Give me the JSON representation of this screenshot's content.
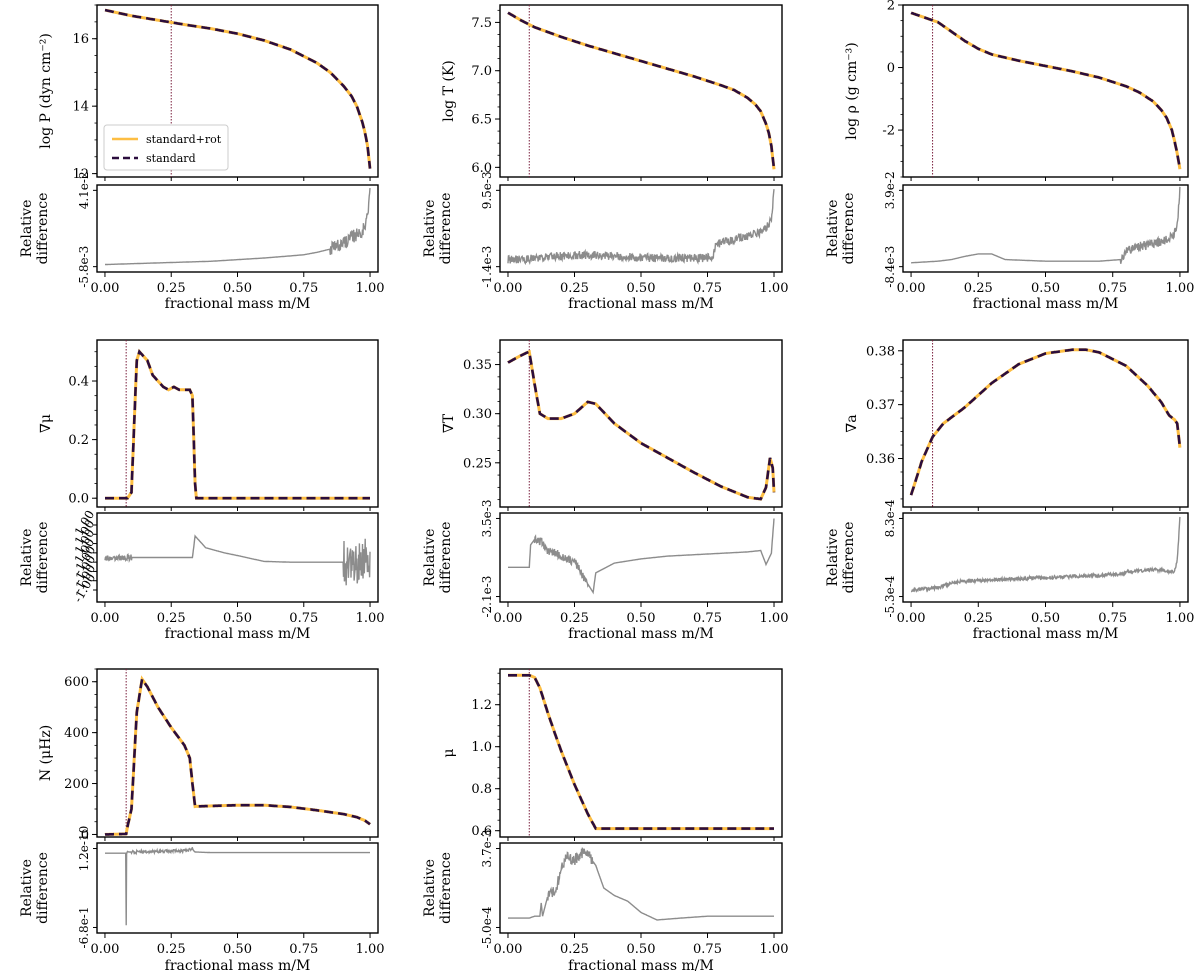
{
  "figure": {
    "xlabel": "fractional mass m/M",
    "diff_ylabel": [
      "Relative",
      "difference"
    ],
    "legend": [
      {
        "label": "standard+rot",
        "color": "#FDBE43",
        "style": "solid"
      },
      {
        "label": "standard",
        "color": "#2B0D3D",
        "style": "dashed"
      }
    ],
    "colors": {
      "rot": "#FDBE43",
      "standard": "#2B0D3D",
      "difference": "#8C8C8C",
      "vline": "#7A1F3D"
    }
  },
  "chart_data": [
    {
      "id": "logP",
      "type": "line",
      "ylabel": "log P (dyn cm⁻²)",
      "ylim": [
        11.9,
        17.0
      ],
      "yticks": [
        12,
        14,
        16
      ],
      "xlim": [
        -0.03,
        1.03
      ],
      "vline_x": 0.25,
      "x": [
        0,
        0.1,
        0.2,
        0.3,
        0.4,
        0.5,
        0.6,
        0.7,
        0.8,
        0.85,
        0.9,
        0.93,
        0.95,
        0.97,
        0.98,
        0.99,
        1.0
      ],
      "series": [
        {
          "name": "standard+rot",
          "values": [
            16.85,
            16.68,
            16.55,
            16.42,
            16.3,
            16.15,
            15.95,
            15.68,
            15.28,
            15.0,
            14.6,
            14.3,
            14.0,
            13.55,
            13.25,
            12.85,
            12.15
          ]
        },
        {
          "name": "standard",
          "values": [
            16.85,
            16.68,
            16.55,
            16.42,
            16.3,
            16.15,
            15.95,
            15.68,
            15.28,
            15.0,
            14.6,
            14.3,
            14.0,
            13.55,
            13.25,
            12.85,
            12.15
          ]
        }
      ],
      "difference": {
        "ylim": [
          -0.0058,
          0.041
        ],
        "tick_labels": [
          "4.1e-2",
          "-5.8e-3"
        ],
        "x": [
          0,
          0.1,
          0.2,
          0.3,
          0.4,
          0.5,
          0.6,
          0.7,
          0.75,
          0.8,
          0.85,
          0.88,
          0.9,
          0.92,
          0.94,
          0.96,
          0.98,
          0.99,
          1.0
        ],
        "values": [
          -0.0045,
          -0.004,
          -0.0035,
          -0.003,
          -0.0025,
          -0.0015,
          -0.0005,
          0.0008,
          0.0015,
          0.003,
          0.005,
          0.007,
          0.009,
          0.011,
          0.013,
          0.015,
          0.018,
          0.025,
          0.041
        ],
        "noise_x": [
          0.85,
          1.0
        ],
        "noise_amp": 0.004
      }
    },
    {
      "id": "logT",
      "type": "line",
      "ylabel": "log T (K)",
      "ylim": [
        5.9,
        7.68
      ],
      "yticks": [
        6.0,
        6.5,
        7.0,
        7.5
      ],
      "xlim": [
        -0.03,
        1.03
      ],
      "vline_x": 0.08,
      "x": [
        0,
        0.05,
        0.1,
        0.2,
        0.3,
        0.4,
        0.5,
        0.6,
        0.7,
        0.8,
        0.85,
        0.9,
        0.93,
        0.95,
        0.97,
        0.98,
        0.99,
        1.0
      ],
      "series": [
        {
          "name": "standard+rot",
          "values": [
            7.6,
            7.52,
            7.45,
            7.35,
            7.26,
            7.18,
            7.1,
            7.02,
            6.94,
            6.85,
            6.8,
            6.72,
            6.65,
            6.58,
            6.45,
            6.36,
            6.22,
            5.98
          ]
        },
        {
          "name": "standard",
          "values": [
            7.6,
            7.52,
            7.45,
            7.35,
            7.26,
            7.18,
            7.1,
            7.02,
            6.94,
            6.85,
            6.8,
            6.72,
            6.65,
            6.58,
            6.45,
            6.36,
            6.22,
            5.98
          ]
        }
      ],
      "difference": {
        "ylim": [
          -0.0014,
          0.0095
        ],
        "tick_labels": [
          "9.5e-3",
          "-1.4e-3"
        ],
        "x": [
          0,
          0.05,
          0.1,
          0.15,
          0.2,
          0.3,
          0.4,
          0.5,
          0.6,
          0.7,
          0.77,
          0.78,
          0.8,
          0.85,
          0.9,
          0.95,
          0.98,
          0.99,
          1.0
        ],
        "values": [
          -0.0004,
          -0.0004,
          -0.0002,
          0.0,
          0.0001,
          0.0003,
          0.0001,
          -0.0001,
          -0.0002,
          -0.0002,
          -0.0001,
          0.0015,
          0.002,
          0.0025,
          0.003,
          0.0035,
          0.0045,
          0.0055,
          0.0095
        ],
        "noise_x": [
          0.0,
          1.0
        ],
        "noise_amp": 0.0006
      }
    },
    {
      "id": "logRho",
      "type": "line",
      "ylabel": "log ρ (g cm⁻³)",
      "ylim": [
        -3.5,
        2.0
      ],
      "yticks": [
        -2,
        0,
        2
      ],
      "xlim": [
        -0.03,
        1.03
      ],
      "vline_x": 0.08,
      "x": [
        0,
        0.05,
        0.1,
        0.15,
        0.2,
        0.25,
        0.3,
        0.4,
        0.5,
        0.6,
        0.7,
        0.8,
        0.85,
        0.9,
        0.93,
        0.95,
        0.97,
        0.98,
        0.99,
        1.0
      ],
      "series": [
        {
          "name": "standard+rot",
          "values": [
            1.75,
            1.6,
            1.45,
            1.15,
            0.85,
            0.6,
            0.42,
            0.22,
            0.05,
            -0.12,
            -0.32,
            -0.6,
            -0.8,
            -1.08,
            -1.35,
            -1.6,
            -2.0,
            -2.35,
            -2.75,
            -3.25
          ]
        },
        {
          "name": "standard",
          "values": [
            1.75,
            1.6,
            1.45,
            1.15,
            0.85,
            0.6,
            0.42,
            0.22,
            0.05,
            -0.12,
            -0.32,
            -0.6,
            -0.8,
            -1.08,
            -1.35,
            -1.6,
            -2.0,
            -2.35,
            -2.75,
            -3.25
          ]
        }
      ],
      "difference": {
        "ylim": [
          -0.0084,
          0.039
        ],
        "tick_labels": [
          "3.9e-2",
          "-8.4e-3"
        ],
        "x": [
          0,
          0.1,
          0.15,
          0.2,
          0.25,
          0.3,
          0.35,
          0.5,
          0.7,
          0.78,
          0.8,
          0.85,
          0.9,
          0.95,
          0.98,
          0.99,
          1.0
        ],
        "values": [
          -0.006,
          -0.005,
          -0.004,
          -0.002,
          -0.0005,
          -0.0005,
          -0.004,
          -0.005,
          -0.005,
          -0.004,
          0.002,
          0.004,
          0.006,
          0.008,
          0.012,
          0.018,
          0.039
        ],
        "noise_x": [
          0.78,
          1.0
        ],
        "noise_amp": 0.003
      }
    },
    {
      "id": "gradMu",
      "type": "line",
      "ylabel": "∇μ",
      "ylim": [
        -0.03,
        0.54
      ],
      "yticks": [
        0.0,
        0.2,
        0.4
      ],
      "xlim": [
        -0.03,
        1.03
      ],
      "vline_x": 0.08,
      "x": [
        0,
        0.085,
        0.1,
        0.11,
        0.12,
        0.13,
        0.14,
        0.16,
        0.18,
        0.2,
        0.22,
        0.24,
        0.26,
        0.28,
        0.3,
        0.32,
        0.33,
        0.34,
        0.345,
        0.5,
        0.7,
        1.0
      ],
      "series": [
        {
          "name": "standard+rot",
          "values": [
            0.0,
            0.0,
            0.02,
            0.25,
            0.47,
            0.5,
            0.49,
            0.47,
            0.42,
            0.4,
            0.38,
            0.37,
            0.38,
            0.37,
            0.37,
            0.37,
            0.35,
            0.05,
            0.0,
            0.0,
            0.0,
            0.0
          ]
        },
        {
          "name": "standard",
          "values": [
            0.0,
            0.0,
            0.02,
            0.25,
            0.47,
            0.5,
            0.49,
            0.47,
            0.42,
            0.4,
            0.38,
            0.37,
            0.38,
            0.37,
            0.37,
            0.37,
            0.35,
            0.05,
            0.0,
            0.0,
            0.0,
            0.0
          ]
        }
      ],
      "difference": {
        "ylim": [
          -1.0,
          1.0
        ],
        "tick_labels": [
          "1.00",
          "1.00",
          "1.00",
          "1.00",
          "-1.00",
          "-1.00",
          "-1.00",
          "-1.00"
        ],
        "x": [
          0,
          0.08,
          0.1,
          0.2,
          0.3,
          0.33,
          0.34,
          0.38,
          0.45,
          0.5,
          0.6,
          0.7,
          0.8,
          0.9,
          0.95,
          0.97,
          1.0
        ],
        "values": [
          0.0,
          0.0,
          0.0,
          0.0,
          0.0,
          0.0,
          0.55,
          0.25,
          0.12,
          0.05,
          -0.1,
          -0.12,
          -0.12,
          -0.12,
          -0.12,
          -0.12,
          -0.05
        ],
        "noise_x": [
          0.0,
          0.1
        ],
        "noise_amp": 0.08,
        "noise2_x": [
          0.9,
          1.0
        ],
        "noise2_amp": 0.6
      }
    },
    {
      "id": "gradT",
      "type": "line",
      "ylabel": "∇T",
      "ylim": [
        0.205,
        0.375
      ],
      "yticks": [
        0.25,
        0.3,
        0.35
      ],
      "xlim": [
        -0.03,
        1.03
      ],
      "vline_x": 0.08,
      "x": [
        0,
        0.04,
        0.07,
        0.08,
        0.1,
        0.12,
        0.15,
        0.2,
        0.25,
        0.3,
        0.33,
        0.4,
        0.5,
        0.6,
        0.7,
        0.8,
        0.9,
        0.95,
        0.97,
        0.985,
        0.995,
        1.0
      ],
      "series": [
        {
          "name": "standard+rot",
          "values": [
            0.352,
            0.358,
            0.362,
            0.363,
            0.33,
            0.3,
            0.295,
            0.295,
            0.3,
            0.312,
            0.31,
            0.29,
            0.27,
            0.255,
            0.24,
            0.226,
            0.215,
            0.213,
            0.225,
            0.255,
            0.245,
            0.22
          ]
        },
        {
          "name": "standard",
          "values": [
            0.352,
            0.358,
            0.362,
            0.363,
            0.33,
            0.3,
            0.295,
            0.295,
            0.3,
            0.312,
            0.31,
            0.29,
            0.27,
            0.255,
            0.24,
            0.226,
            0.215,
            0.213,
            0.225,
            0.255,
            0.245,
            0.22
          ]
        }
      ],
      "difference": {
        "ylim": [
          -0.0021,
          0.0035
        ],
        "tick_labels": [
          "3.5e-3",
          "-2.1e-3"
        ],
        "x": [
          0,
          0.08,
          0.085,
          0.1,
          0.13,
          0.15,
          0.18,
          0.2,
          0.25,
          0.3,
          0.32,
          0.33,
          0.4,
          0.5,
          0.6,
          0.7,
          0.8,
          0.9,
          0.95,
          0.97,
          0.99,
          1.0
        ],
        "values": [
          0.0,
          0.0,
          0.0016,
          0.002,
          0.0018,
          0.0012,
          0.001,
          0.0008,
          0.0004,
          -0.0012,
          -0.0018,
          -0.0004,
          0.0003,
          0.0006,
          0.0008,
          0.0009,
          0.001,
          0.0011,
          0.0012,
          0.0002,
          0.001,
          0.0035
        ],
        "noise_x": [
          0.1,
          0.3
        ],
        "noise_amp": 0.0003
      }
    },
    {
      "id": "gradA",
      "type": "line",
      "ylabel": "∇a",
      "ylim": [
        0.351,
        0.382
      ],
      "yticks": [
        0.36,
        0.37,
        0.38
      ],
      "xlim": [
        -0.03,
        1.03
      ],
      "vline_x": 0.08,
      "x": [
        0,
        0.04,
        0.08,
        0.12,
        0.2,
        0.3,
        0.4,
        0.5,
        0.6,
        0.65,
        0.7,
        0.8,
        0.88,
        0.93,
        0.96,
        0.98,
        0.99,
        1.0
      ],
      "series": [
        {
          "name": "standard+rot",
          "values": [
            0.3532,
            0.3595,
            0.364,
            0.3665,
            0.3695,
            0.374,
            0.3775,
            0.3795,
            0.3802,
            0.3802,
            0.3797,
            0.3772,
            0.3735,
            0.3705,
            0.368,
            0.3672,
            0.3665,
            0.362
          ]
        },
        {
          "name": "standard",
          "values": [
            0.3532,
            0.3595,
            0.364,
            0.3665,
            0.3695,
            0.374,
            0.3775,
            0.3795,
            0.3802,
            0.3802,
            0.3797,
            0.3772,
            0.3735,
            0.3705,
            0.368,
            0.3672,
            0.3665,
            0.362
          ]
        }
      ],
      "difference": {
        "ylim": [
          -0.00053,
          0.00083
        ],
        "tick_labels": [
          "8.3e-4",
          "-5.3e-4"
        ],
        "x": [
          0,
          0.1,
          0.15,
          0.2,
          0.3,
          0.4,
          0.5,
          0.6,
          0.7,
          0.78,
          0.8,
          0.85,
          0.9,
          0.95,
          0.98,
          0.99,
          1.0
        ],
        "values": [
          -0.00042,
          -0.00037,
          -0.0003,
          -0.00026,
          -0.00024,
          -0.00022,
          -0.0002,
          -0.00018,
          -0.00016,
          -0.00014,
          -0.0001,
          -8e-05,
          -6e-05,
          -8e-05,
          -0.0001,
          0.0001,
          0.00083
        ],
        "noise_x": [
          0.0,
          1.0
        ],
        "noise_amp": 3e-05
      }
    },
    {
      "id": "N",
      "type": "line",
      "ylabel": "N (μHz)",
      "ylim": [
        -10,
        650
      ],
      "yticks": [
        0,
        200,
        400,
        600
      ],
      "xlim": [
        -0.03,
        1.03
      ],
      "vline_x": 0.08,
      "x": [
        0,
        0.08,
        0.085,
        0.1,
        0.12,
        0.14,
        0.16,
        0.2,
        0.25,
        0.3,
        0.32,
        0.33,
        0.34,
        0.4,
        0.5,
        0.6,
        0.7,
        0.8,
        0.9,
        0.95,
        0.98,
        1.0
      ],
      "series": [
        {
          "name": "standard+rot",
          "values": [
            0,
            2,
            30,
            100,
            480,
            610,
            580,
            500,
            420,
            350,
            300,
            200,
            110,
            112,
            115,
            115,
            108,
            95,
            80,
            68,
            55,
            40
          ]
        },
        {
          "name": "standard",
          "values": [
            0,
            2,
            30,
            100,
            480,
            610,
            580,
            500,
            420,
            350,
            300,
            200,
            110,
            112,
            115,
            115,
            108,
            95,
            80,
            68,
            55,
            40
          ]
        }
      ],
      "difference": {
        "ylim": [
          -0.68,
          1.2e-10
        ],
        "tick_labels": [
          "1.2e-10",
          "-6.8e-1"
        ],
        "x": [
          0,
          0.07,
          0.079,
          0.08,
          0.081,
          0.085,
          0.09,
          0.2,
          0.3,
          0.33,
          0.335,
          0.34,
          0.4,
          1.0
        ],
        "values": [
          -0.04,
          -0.04,
          -0.04,
          -0.66,
          -0.05,
          -0.025,
          -0.03,
          -0.025,
          -0.02,
          0.0,
          -0.02,
          -0.03,
          -0.035,
          -0.035
        ],
        "noise_x": [
          0.1,
          0.33
        ],
        "noise_amp": 0.012
      }
    },
    {
      "id": "mu",
      "type": "line",
      "ylabel": "μ",
      "ylim": [
        0.57,
        1.37
      ],
      "yticks": [
        0.6,
        0.8,
        1.0,
        1.2
      ],
      "xlim": [
        -0.03,
        1.03
      ],
      "vline_x": 0.08,
      "x": [
        0,
        0.05,
        0.08,
        0.1,
        0.12,
        0.15,
        0.18,
        0.2,
        0.25,
        0.3,
        0.33,
        0.35,
        0.5,
        1.0
      ],
      "series": [
        {
          "name": "standard+rot",
          "values": [
            1.34,
            1.34,
            1.34,
            1.33,
            1.28,
            1.16,
            1.05,
            0.98,
            0.82,
            0.68,
            0.61,
            0.61,
            0.61,
            0.61
          ]
        },
        {
          "name": "standard",
          "values": [
            1.34,
            1.34,
            1.34,
            1.33,
            1.28,
            1.16,
            1.05,
            0.98,
            0.82,
            0.68,
            0.61,
            0.61,
            0.61,
            0.61
          ]
        }
      ],
      "difference": {
        "ylim": [
          -0.0005,
          0.0037
        ],
        "tick_labels": [
          "3.7e-3",
          "-5.0e-4"
        ],
        "x": [
          0,
          0.08,
          0.1,
          0.12,
          0.125,
          0.13,
          0.15,
          0.18,
          0.2,
          0.22,
          0.25,
          0.28,
          0.3,
          0.33,
          0.36,
          0.4,
          0.45,
          0.5,
          0.56,
          0.65,
          0.75,
          1.0
        ],
        "values": [
          0.0,
          0.0,
          0.0001,
          0.0001,
          0.0008,
          0.0001,
          0.0012,
          0.0015,
          0.0026,
          0.0032,
          0.0031,
          0.0035,
          0.0034,
          0.0028,
          0.0016,
          0.0012,
          0.0009,
          0.0003,
          -0.0001,
          0.0,
          0.0001,
          0.0001
        ],
        "noise_x": [
          0.15,
          0.32
        ],
        "noise_amp": 0.0003
      }
    }
  ]
}
